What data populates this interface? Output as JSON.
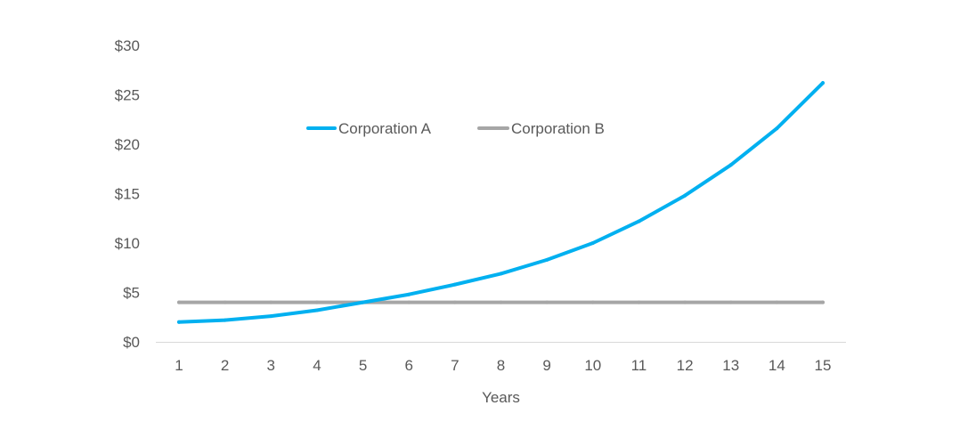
{
  "chart_data": {
    "type": "line",
    "title": "",
    "xlabel": "Years",
    "ylabel": "",
    "categories": [
      "1",
      "2",
      "3",
      "4",
      "5",
      "6",
      "7",
      "8",
      "9",
      "10",
      "11",
      "12",
      "13",
      "14",
      "15"
    ],
    "yticks": [
      "$0",
      "$5",
      "$10",
      "$15",
      "$20",
      "$25",
      "$30"
    ],
    "ylim": [
      0,
      30
    ],
    "grid": false,
    "legend_position": "top-center",
    "series": [
      {
        "name": "Corporation A",
        "color": "#00B0F0",
        "values": [
          2.0,
          2.2,
          2.6,
          3.2,
          4.0,
          4.8,
          5.8,
          6.9,
          8.3,
          10.0,
          12.2,
          14.8,
          17.9,
          21.6,
          26.2
        ]
      },
      {
        "name": "Corporation B",
        "color": "#A6A6A6",
        "values": [
          4.0,
          4.0,
          4.0,
          4.0,
          4.0,
          4.0,
          4.0,
          4.0,
          4.0,
          4.0,
          4.0,
          4.0,
          4.0,
          4.0,
          4.0
        ]
      }
    ]
  }
}
